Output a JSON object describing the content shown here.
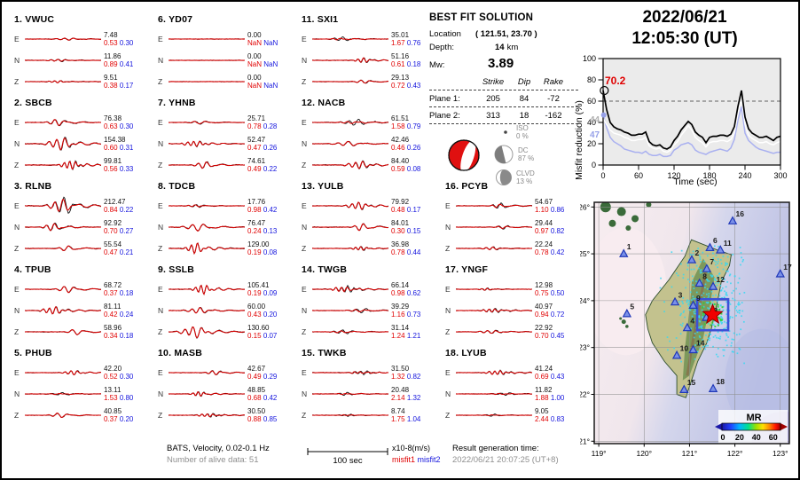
{
  "title": {
    "date": "2022/06/21",
    "time": "12:05:30  (UT)"
  },
  "best_fit": {
    "heading": "BEST FIT SOLUTION",
    "location_label": "Location",
    "location_value": "( 121.51,  23.70 )",
    "depth_label": "Depth:",
    "depth_value": "14",
    "depth_unit": "km",
    "mw_label": "Mw:",
    "mw_value": "3.89",
    "table": {
      "headers": [
        "Strike",
        "Dip",
        "Rake"
      ],
      "rows": [
        {
          "label": "Plane 1:",
          "strike": "205",
          "dip": "84",
          "rake": "-72"
        },
        {
          "label": "Plane 2:",
          "strike": "313",
          "dip": "18",
          "rake": "-162"
        }
      ]
    },
    "components": [
      {
        "name": "ISO",
        "pct": "0 %"
      },
      {
        "name": "DC",
        "pct": "87 %"
      },
      {
        "name": "CLVD",
        "pct": "13 %"
      }
    ]
  },
  "stations": [
    {
      "num": "1.",
      "name": "VWUC",
      "channels": [
        {
          "ch": "E",
          "amp": "7.48",
          "m1": "0.53",
          "m2": "0.30"
        },
        {
          "ch": "N",
          "amp": "11.86",
          "m1": "0.89",
          "m2": "0.41"
        },
        {
          "ch": "Z",
          "amp": "9.51",
          "m1": "0.38",
          "m2": "0.17"
        }
      ]
    },
    {
      "num": "2.",
      "name": "SBCB",
      "channels": [
        {
          "ch": "E",
          "amp": "76.38",
          "m1": "0.63",
          "m2": "0.30"
        },
        {
          "ch": "N",
          "amp": "154.38",
          "m1": "0.60",
          "m2": "0.31"
        },
        {
          "ch": "Z",
          "amp": "99.81",
          "m1": "0.56",
          "m2": "0.33"
        }
      ]
    },
    {
      "num": "3.",
      "name": "RLNB",
      "channels": [
        {
          "ch": "E",
          "amp": "212.47",
          "m1": "0.84",
          "m2": "0.22"
        },
        {
          "ch": "N",
          "amp": "92.92",
          "m1": "0.70",
          "m2": "0.27"
        },
        {
          "ch": "Z",
          "amp": "55.54",
          "m1": "0.47",
          "m2": "0.21"
        }
      ]
    },
    {
      "num": "4.",
      "name": "TPUB",
      "channels": [
        {
          "ch": "E",
          "amp": "68.72",
          "m1": "0.37",
          "m2": "0.18"
        },
        {
          "ch": "N",
          "amp": "81.11",
          "m1": "0.42",
          "m2": "0.24"
        },
        {
          "ch": "Z",
          "amp": "58.96",
          "m1": "0.34",
          "m2": "0.18"
        }
      ]
    },
    {
      "num": "5.",
      "name": "PHUB",
      "channels": [
        {
          "ch": "E",
          "amp": "42.20",
          "m1": "0.52",
          "m2": "0.30"
        },
        {
          "ch": "N",
          "amp": "13.11",
          "m1": "1.53",
          "m2": "0.80"
        },
        {
          "ch": "Z",
          "amp": "40.85",
          "m1": "0.37",
          "m2": "0.20"
        }
      ]
    },
    {
      "num": "6.",
      "name": "YD07",
      "channels": [
        {
          "ch": "E",
          "amp": "0.00",
          "m1": "NaN",
          "m2": "NaN"
        },
        {
          "ch": "N",
          "amp": "0.00",
          "m1": "NaN",
          "m2": "NaN"
        },
        {
          "ch": "Z",
          "amp": "0.00",
          "m1": "NaN",
          "m2": "NaN"
        }
      ]
    },
    {
      "num": "7.",
      "name": "YHNB",
      "channels": [
        {
          "ch": "E",
          "amp": "25.71",
          "m1": "0.78",
          "m2": "0.28"
        },
        {
          "ch": "N",
          "amp": "52.47",
          "m1": "0.47",
          "m2": "0.26"
        },
        {
          "ch": "Z",
          "amp": "74.61",
          "m1": "0.49",
          "m2": "0.22"
        }
      ]
    },
    {
      "num": "8.",
      "name": "TDCB",
      "channels": [
        {
          "ch": "E",
          "amp": "17.76",
          "m1": "0.98",
          "m2": "0.42"
        },
        {
          "ch": "N",
          "amp": "76.47",
          "m1": "0.24",
          "m2": "0.13"
        },
        {
          "ch": "Z",
          "amp": "129.00",
          "m1": "0.19",
          "m2": "0.08"
        }
      ]
    },
    {
      "num": "9.",
      "name": "SSLB",
      "channels": [
        {
          "ch": "E",
          "amp": "105.41",
          "m1": "0.19",
          "m2": "0.09"
        },
        {
          "ch": "N",
          "amp": "60.00",
          "m1": "0.43",
          "m2": "0.20"
        },
        {
          "ch": "Z",
          "amp": "130.60",
          "m1": "0.15",
          "m2": "0.07"
        }
      ]
    },
    {
      "num": "10.",
      "name": "MASB",
      "channels": [
        {
          "ch": "E",
          "amp": "42.67",
          "m1": "0.49",
          "m2": "0.29"
        },
        {
          "ch": "N",
          "amp": "48.85",
          "m1": "0.68",
          "m2": "0.42"
        },
        {
          "ch": "Z",
          "amp": "30.50",
          "m1": "0.88",
          "m2": "0.85"
        }
      ]
    },
    {
      "num": "11.",
      "name": "SXI1",
      "channels": [
        {
          "ch": "E",
          "amp": "35.01",
          "m1": "1.67",
          "m2": "0.76"
        },
        {
          "ch": "N",
          "amp": "51.16",
          "m1": "0.61",
          "m2": "0.18"
        },
        {
          "ch": "Z",
          "amp": "29.13",
          "m1": "0.72",
          "m2": "0.43"
        }
      ]
    },
    {
      "num": "12.",
      "name": "NACB",
      "channels": [
        {
          "ch": "E",
          "amp": "61.51",
          "m1": "1.58",
          "m2": "0.79"
        },
        {
          "ch": "N",
          "amp": "42.46",
          "m1": "0.46",
          "m2": "0.26"
        },
        {
          "ch": "Z",
          "amp": "84.40",
          "m1": "0.59",
          "m2": "0.08"
        }
      ]
    },
    {
      "num": "13.",
      "name": "YULB",
      "channels": [
        {
          "ch": "E",
          "amp": "79.92",
          "m1": "0.48",
          "m2": "0.17"
        },
        {
          "ch": "N",
          "amp": "84.01",
          "m1": "0.30",
          "m2": "0.15"
        },
        {
          "ch": "Z",
          "amp": "36.98",
          "m1": "0.78",
          "m2": "0.44"
        }
      ]
    },
    {
      "num": "14.",
      "name": "TWGB",
      "channels": [
        {
          "ch": "E",
          "amp": "66.14",
          "m1": "0.98",
          "m2": "0.62"
        },
        {
          "ch": "N",
          "amp": "39.29",
          "m1": "1.16",
          "m2": "0.73"
        },
        {
          "ch": "Z",
          "amp": "31.14",
          "m1": "1.24",
          "m2": "1.21"
        }
      ]
    },
    {
      "num": "15.",
      "name": "TWKB",
      "channels": [
        {
          "ch": "E",
          "amp": "31.50",
          "m1": "1.32",
          "m2": "0.82"
        },
        {
          "ch": "N",
          "amp": "20.48",
          "m1": "2.14",
          "m2": "1.32"
        },
        {
          "ch": "Z",
          "amp": "8.74",
          "m1": "1.75",
          "m2": "1.04"
        }
      ]
    },
    {
      "num": "16.",
      "name": "PCYB",
      "channels": [
        {
          "ch": "E",
          "amp": "54.67",
          "m1": "1.10",
          "m2": "0.86"
        },
        {
          "ch": "N",
          "amp": "29.44",
          "m1": "0.97",
          "m2": "0.82"
        },
        {
          "ch": "Z",
          "amp": "22.24",
          "m1": "0.78",
          "m2": "0.42"
        }
      ]
    },
    {
      "num": "17.",
      "name": "YNGF",
      "channels": [
        {
          "ch": "E",
          "amp": "12.98",
          "m1": "0.75",
          "m2": "0.50"
        },
        {
          "ch": "N",
          "amp": "40.97",
          "m1": "0.94",
          "m2": "0.72"
        },
        {
          "ch": "Z",
          "amp": "22.92",
          "m1": "0.70",
          "m2": "0.45"
        }
      ]
    },
    {
      "num": "18.",
      "name": "LYUB",
      "channels": [
        {
          "ch": "E",
          "amp": "41.24",
          "m1": "0.69",
          "m2": "0.43"
        },
        {
          "ch": "N",
          "amp": "11.82",
          "m1": "1.88",
          "m2": "1.00"
        },
        {
          "ch": "Z",
          "amp": "9.05",
          "m1": "2.44",
          "m2": "0.83"
        }
      ]
    }
  ],
  "footer": {
    "bats_line": "BATS, Velocity, 0.02-0.1 Hz",
    "alive_line": "Number of alive data: 51",
    "scalebar_label": "100 sec",
    "units_label": "x10-8(m/s)",
    "misfit1_label": "misfit1",
    "misfit2_label": "misfit2",
    "result_label": "Result generation time:",
    "result_time": "2022/06/21 20:07:25 (UT+8)"
  },
  "chart_data": {
    "type": "line",
    "title": "",
    "xlabel": "Time (sec)",
    "ylabel": "Misfit reduction (%)",
    "xlim": [
      0,
      300
    ],
    "ylim": [
      0,
      100
    ],
    "xticks": [
      0,
      60,
      120,
      180,
      240,
      300
    ],
    "yticks": [
      0,
      20,
      40,
      60,
      80,
      100
    ],
    "dashed_line_y": 60,
    "annotations": [
      {
        "text": "70.2",
        "color": "#e00000"
      },
      {
        "text": "44",
        "color": "#b0b0b0"
      },
      {
        "text": "47",
        "color": "#96a0e8"
      }
    ],
    "x": [
      0,
      6,
      12,
      18,
      24,
      30,
      36,
      42,
      48,
      54,
      60,
      66,
      72,
      78,
      84,
      90,
      96,
      102,
      108,
      114,
      120,
      126,
      132,
      138,
      144,
      150,
      156,
      162,
      168,
      174,
      180,
      186,
      192,
      198,
      204,
      210,
      216,
      222,
      228,
      234,
      240,
      246,
      252,
      258,
      264,
      270,
      276,
      282,
      288,
      294,
      300
    ],
    "series": [
      {
        "name": "best misfit reduction",
        "color": "#000000",
        "y": [
          70,
          52,
          40,
          36,
          34,
          33,
          31,
          30,
          28,
          28,
          29,
          29,
          31,
          22,
          19,
          18,
          19,
          16,
          15,
          17,
          23,
          27,
          33,
          37,
          41,
          38,
          31,
          28,
          26,
          21,
          26,
          27,
          27,
          28,
          28,
          27,
          29,
          36,
          55,
          70,
          45,
          34,
          30,
          28,
          26,
          26,
          27,
          25,
          23,
          26,
          27
        ]
      },
      {
        "name": "mid misfit reduction",
        "color": "#ffffff",
        "y": [
          44,
          38,
          33,
          30,
          29,
          28,
          26,
          25,
          23,
          23,
          24,
          24,
          26,
          18,
          16,
          15,
          16,
          13,
          12,
          14,
          19,
          22,
          28,
          32,
          37,
          33,
          26,
          23,
          21,
          17,
          21,
          22,
          22,
          23,
          23,
          22,
          24,
          30,
          48,
          62,
          38,
          28,
          25,
          23,
          21,
          21,
          22,
          20,
          19,
          21,
          22
        ]
      },
      {
        "name": "low misfit reduction",
        "color": "#a9b0f0",
        "y": [
          47,
          35,
          26,
          22,
          20,
          18,
          15,
          14,
          13,
          12,
          12,
          11,
          13,
          10,
          9,
          9,
          10,
          8,
          8,
          9,
          14,
          16,
          19,
          20,
          21,
          19,
          14,
          12,
          11,
          10,
          12,
          13,
          14,
          15,
          14,
          13,
          16,
          24,
          42,
          55,
          30,
          23,
          20,
          17,
          15,
          14,
          13,
          12,
          11,
          12,
          12
        ]
      }
    ]
  },
  "map": {
    "lat_ticks": [
      "26°",
      "25°",
      "24°",
      "23°",
      "22°",
      "21°"
    ],
    "lon_ticks": [
      "119°",
      "120°",
      "121°",
      "122°",
      "123°"
    ],
    "colorbar": {
      "label": "MR",
      "ticks": [
        "0",
        "20",
        "40",
        "60"
      ]
    },
    "epicenter": {
      "lon": 121.51,
      "lat": 23.7
    },
    "stations": [
      {
        "num": "1",
        "lon": 119.55,
        "lat": 25.0
      },
      {
        "num": "2",
        "lon": 121.05,
        "lat": 24.87
      },
      {
        "num": "3",
        "lon": 120.68,
        "lat": 23.97
      },
      {
        "num": "4",
        "lon": 120.95,
        "lat": 23.42
      },
      {
        "num": "5",
        "lon": 119.62,
        "lat": 23.72
      },
      {
        "num": "6",
        "lon": 121.45,
        "lat": 25.13
      },
      {
        "num": "7",
        "lon": 121.38,
        "lat": 24.68
      },
      {
        "num": "8",
        "lon": 121.22,
        "lat": 24.37
      },
      {
        "num": "9",
        "lon": 121.08,
        "lat": 23.9
      },
      {
        "num": "10",
        "lon": 120.72,
        "lat": 22.83
      },
      {
        "num": "11",
        "lon": 121.68,
        "lat": 25.08
      },
      {
        "num": "12",
        "lon": 121.52,
        "lat": 24.3
      },
      {
        "num": "13",
        "lon": 121.37,
        "lat": 23.64
      },
      {
        "num": "14",
        "lon": 121.08,
        "lat": 22.95
      },
      {
        "num": "15",
        "lon": 120.88,
        "lat": 22.1
      },
      {
        "num": "16",
        "lon": 121.95,
        "lat": 25.7
      },
      {
        "num": "17",
        "lon": 123.0,
        "lat": 24.57
      },
      {
        "num": "18",
        "lon": 121.52,
        "lat": 22.12
      }
    ]
  }
}
